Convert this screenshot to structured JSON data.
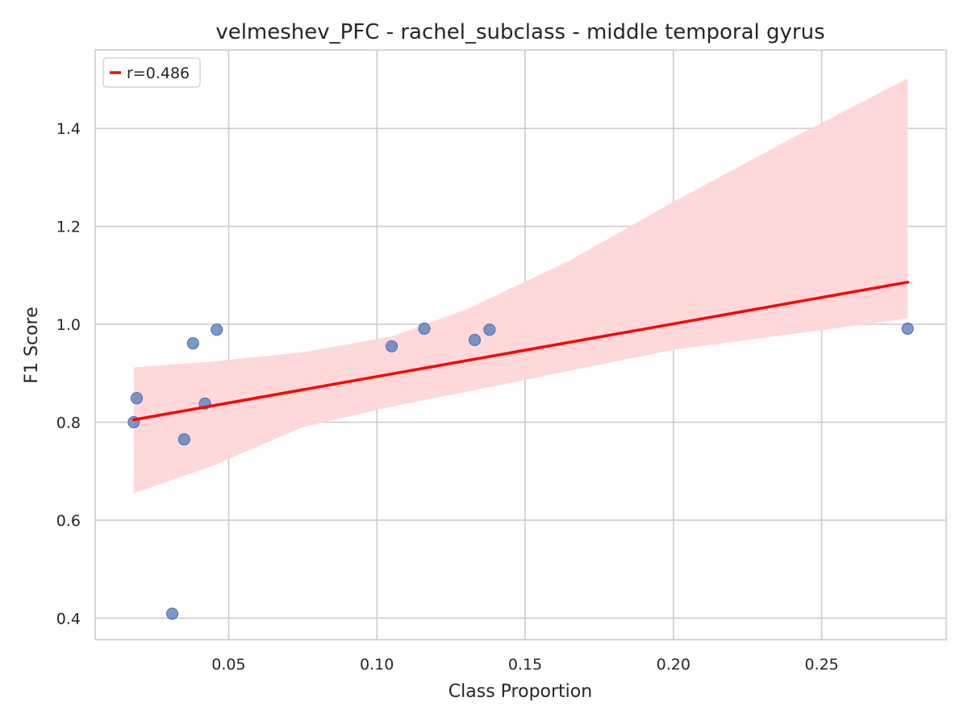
{
  "chart_data": {
    "type": "scatter",
    "title": "velmeshev_PFC - rachel_subclass - middle temporal gyrus",
    "xlabel": "Class Proportion",
    "ylabel": "F1 Score",
    "xlim": [
      0.005,
      0.292
    ],
    "ylim": [
      0.356,
      1.56
    ],
    "xticks": [
      0.05,
      0.1,
      0.15,
      0.2,
      0.25
    ],
    "xtick_labels": [
      "0.05",
      "0.10",
      "0.15",
      "0.20",
      "0.25"
    ],
    "yticks": [
      0.4,
      0.6,
      0.8,
      1.0,
      1.2,
      1.4
    ],
    "ytick_labels": [
      "0.4",
      "0.6",
      "0.8",
      "1.0",
      "1.2",
      "1.4"
    ],
    "grid": true,
    "legend_position": "top-left",
    "series": [
      {
        "kind": "points",
        "color": "#5a7fbf",
        "points": [
          {
            "x": 0.018,
            "y": 0.8
          },
          {
            "x": 0.019,
            "y": 0.849
          },
          {
            "x": 0.031,
            "y": 0.409
          },
          {
            "x": 0.035,
            "y": 0.765
          },
          {
            "x": 0.038,
            "y": 0.961
          },
          {
            "x": 0.042,
            "y": 0.838
          },
          {
            "x": 0.046,
            "y": 0.989
          },
          {
            "x": 0.105,
            "y": 0.955
          },
          {
            "x": 0.116,
            "y": 0.991
          },
          {
            "x": 0.133,
            "y": 0.968
          },
          {
            "x": 0.138,
            "y": 0.989
          },
          {
            "x": 0.279,
            "y": 0.991
          }
        ]
      },
      {
        "kind": "regression",
        "name": "r=0.486",
        "color": "#ff0000",
        "line": [
          {
            "x": 0.018,
            "y": 0.805
          },
          {
            "x": 0.279,
            "y": 1.086
          }
        ],
        "band_color": "#ffd6d8",
        "band_upper": [
          {
            "x": 0.018,
            "y": 0.912
          },
          {
            "x": 0.045,
            "y": 0.924
          },
          {
            "x": 0.075,
            "y": 0.943
          },
          {
            "x": 0.105,
            "y": 0.975
          },
          {
            "x": 0.13,
            "y": 1.03
          },
          {
            "x": 0.165,
            "y": 1.13
          },
          {
            "x": 0.2,
            "y": 1.25
          },
          {
            "x": 0.24,
            "y": 1.38
          },
          {
            "x": 0.279,
            "y": 1.502
          }
        ],
        "band_lower": [
          {
            "x": 0.018,
            "y": 0.655
          },
          {
            "x": 0.045,
            "y": 0.712
          },
          {
            "x": 0.075,
            "y": 0.79
          },
          {
            "x": 0.105,
            "y": 0.832
          },
          {
            "x": 0.13,
            "y": 0.862
          },
          {
            "x": 0.165,
            "y": 0.905
          },
          {
            "x": 0.2,
            "y": 0.948
          },
          {
            "x": 0.24,
            "y": 0.98
          },
          {
            "x": 0.279,
            "y": 1.012
          }
        ]
      }
    ]
  }
}
